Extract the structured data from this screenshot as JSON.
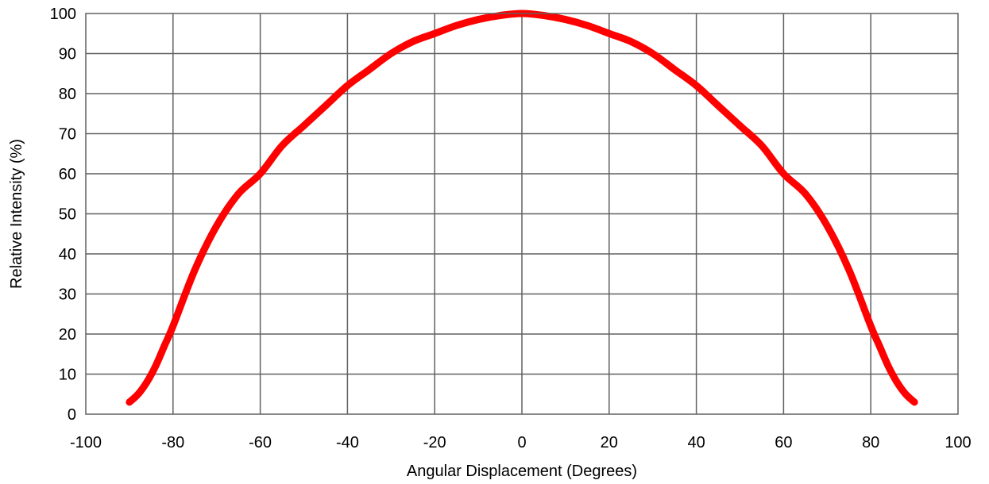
{
  "chart_data": {
    "type": "line",
    "title": "",
    "xlabel": "Angular Displacement (Degrees)",
    "ylabel": "Relative Intensity (%)",
    "xlim": [
      -100,
      100
    ],
    "ylim": [
      0,
      100
    ],
    "xticks": [
      -100,
      -80,
      -60,
      -40,
      -20,
      0,
      20,
      40,
      60,
      80,
      100
    ],
    "yticks": [
      0,
      10,
      20,
      30,
      40,
      50,
      60,
      70,
      80,
      90,
      100
    ],
    "grid": true,
    "legend": "none",
    "series": [
      {
        "color": "#ff0000",
        "x": [
          -90,
          -88,
          -86,
          -84,
          -82,
          -80,
          -75,
          -70,
          -65,
          -60,
          -55,
          -50,
          -45,
          -40,
          -35,
          -30,
          -25,
          -20,
          -15,
          -10,
          -5,
          0,
          5,
          10,
          15,
          20,
          25,
          30,
          35,
          40,
          45,
          50,
          55,
          60,
          65,
          70,
          75,
          80,
          82,
          84,
          86,
          88,
          90
        ],
        "y": [
          3,
          5,
          8,
          12,
          17,
          22,
          36,
          47,
          55,
          60,
          67,
          72,
          77,
          82,
          86,
          90,
          93,
          95,
          97,
          98.5,
          99.5,
          100,
          99.5,
          98.5,
          97,
          95,
          93,
          90,
          86,
          82,
          77,
          72,
          67,
          60,
          55,
          47,
          36,
          22,
          17,
          12,
          8,
          5,
          3
        ]
      }
    ]
  }
}
